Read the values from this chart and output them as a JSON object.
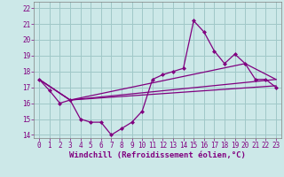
{
  "xlabel": "Windchill (Refroidissement éolien,°C)",
  "background_color": "#cce8e8",
  "grid_color": "#a0c8c8",
  "line_color": "#800080",
  "ylim": [
    13.8,
    22.4
  ],
  "xlim": [
    -0.5,
    23.5
  ],
  "yticks": [
    14,
    15,
    16,
    17,
    18,
    19,
    20,
    21,
    22
  ],
  "xticks": [
    0,
    1,
    2,
    3,
    4,
    5,
    6,
    7,
    8,
    9,
    10,
    11,
    12,
    13,
    14,
    15,
    16,
    17,
    18,
    19,
    20,
    21,
    22,
    23
  ],
  "main_series": {
    "x": [
      0,
      1,
      2,
      3,
      4,
      5,
      6,
      7,
      8,
      9,
      10,
      11,
      12,
      13,
      14,
      15,
      16,
      17,
      18,
      19,
      20,
      21,
      22,
      23
    ],
    "y": [
      17.5,
      16.8,
      16.0,
      16.2,
      15.0,
      14.8,
      14.8,
      14.0,
      14.4,
      14.8,
      15.5,
      17.5,
      17.8,
      18.0,
      18.2,
      21.2,
      20.5,
      19.3,
      18.5,
      19.1,
      18.5,
      17.5,
      17.5,
      17.0
    ]
  },
  "trend_lines": [
    {
      "x": [
        0,
        3,
        23
      ],
      "y": [
        17.5,
        16.2,
        17.1
      ]
    },
    {
      "x": [
        0,
        3,
        23
      ],
      "y": [
        17.5,
        16.2,
        17.5
      ]
    },
    {
      "x": [
        0,
        3,
        20,
        23
      ],
      "y": [
        17.5,
        16.2,
        18.5,
        17.5
      ]
    }
  ]
}
